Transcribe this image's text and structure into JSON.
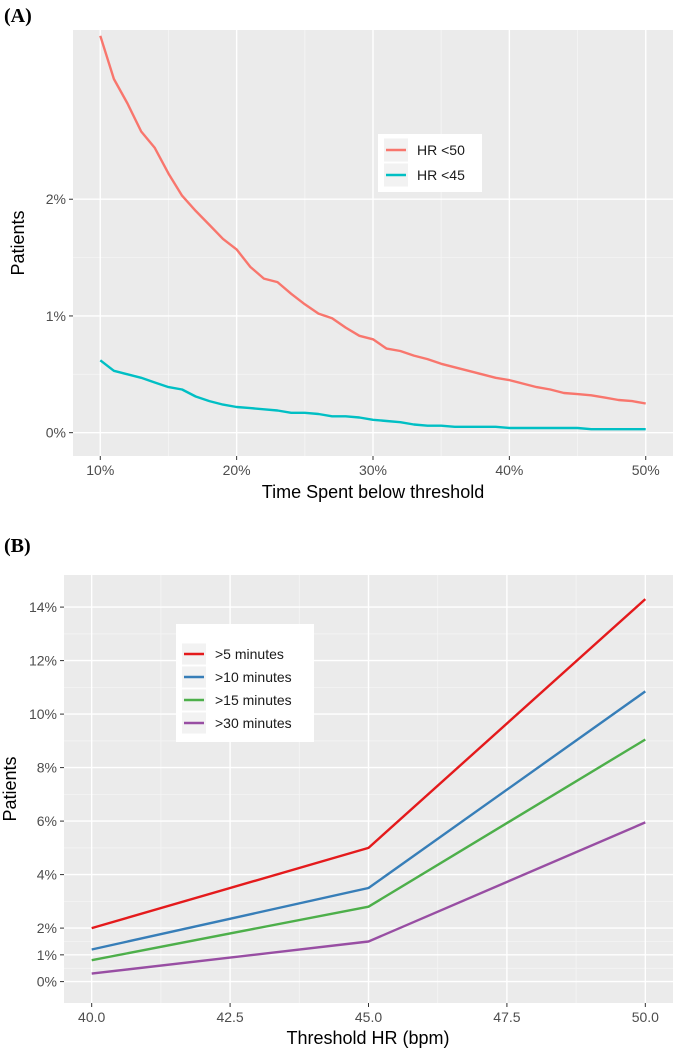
{
  "chart_data": [
    {
      "panel_label": "(A)",
      "type": "line",
      "title": "",
      "xlabel": "Time Spent below threshold",
      "ylabel": "Patients",
      "xlim": [
        0.08,
        0.52
      ],
      "ylim": [
        -0.2,
        3.45
      ],
      "grid": true,
      "legend_position": "top-right",
      "x_ticks": [
        {
          "value": 0.1,
          "label": "10%"
        },
        {
          "value": 0.2,
          "label": "20%"
        },
        {
          "value": 0.3,
          "label": "30%"
        },
        {
          "value": 0.4,
          "label": "40%"
        },
        {
          "value": 0.5,
          "label": "50%"
        }
      ],
      "y_ticks": [
        {
          "value": 0,
          "label": "0%"
        },
        {
          "value": 1,
          "label": "1%"
        },
        {
          "value": 2,
          "label": "2%"
        }
      ],
      "x": [
        0.1,
        0.11,
        0.12,
        0.13,
        0.14,
        0.15,
        0.16,
        0.17,
        0.18,
        0.19,
        0.2,
        0.21,
        0.22,
        0.23,
        0.24,
        0.25,
        0.26,
        0.27,
        0.28,
        0.29,
        0.3,
        0.31,
        0.32,
        0.33,
        0.34,
        0.35,
        0.36,
        0.37,
        0.38,
        0.39,
        0.4,
        0.41,
        0.42,
        0.43,
        0.44,
        0.45,
        0.46,
        0.47,
        0.48,
        0.49,
        0.5
      ],
      "series": [
        {
          "name": "HR <50",
          "color": "#F8766D",
          "values": [
            3.4,
            3.03,
            2.82,
            2.58,
            2.44,
            2.22,
            2.03,
            1.9,
            1.78,
            1.66,
            1.57,
            1.42,
            1.32,
            1.29,
            1.19,
            1.1,
            1.02,
            0.98,
            0.9,
            0.83,
            0.8,
            0.72,
            0.7,
            0.66,
            0.63,
            0.59,
            0.56,
            0.53,
            0.5,
            0.47,
            0.45,
            0.42,
            0.39,
            0.37,
            0.34,
            0.33,
            0.32,
            0.3,
            0.28,
            0.27,
            0.25
          ]
        },
        {
          "name": "HR <45",
          "color": "#00BFC4",
          "values": [
            0.62,
            0.53,
            0.5,
            0.47,
            0.43,
            0.39,
            0.37,
            0.31,
            0.27,
            0.24,
            0.22,
            0.21,
            0.2,
            0.19,
            0.17,
            0.17,
            0.16,
            0.14,
            0.14,
            0.13,
            0.11,
            0.1,
            0.09,
            0.07,
            0.06,
            0.06,
            0.05,
            0.05,
            0.05,
            0.05,
            0.04,
            0.04,
            0.04,
            0.04,
            0.04,
            0.04,
            0.03,
            0.03,
            0.03,
            0.03,
            0.03
          ]
        }
      ]
    },
    {
      "panel_label": "(B)",
      "type": "line",
      "title": "",
      "xlabel": "Threshold HR (bpm)",
      "ylabel": "Patients",
      "xlim": [
        39.5,
        50.5
      ],
      "ylim": [
        -0.8,
        15.2
      ],
      "grid": true,
      "legend_position": "top-left",
      "x_ticks": [
        {
          "value": 40,
          "label": "40.0"
        },
        {
          "value": 42.5,
          "label": "42.5"
        },
        {
          "value": 45,
          "label": "45.0"
        },
        {
          "value": 47.5,
          "label": "47.5"
        },
        {
          "value": 50,
          "label": "50.0"
        }
      ],
      "y_ticks": [
        {
          "value": 0,
          "label": "0%"
        },
        {
          "value": 1,
          "label": "1%"
        },
        {
          "value": 2,
          "label": "2%"
        },
        {
          "value": 4,
          "label": "4%"
        },
        {
          "value": 6,
          "label": "6%"
        },
        {
          "value": 8,
          "label": "8%"
        },
        {
          "value": 10,
          "label": "10%"
        },
        {
          "value": 12,
          "label": "12%"
        },
        {
          "value": 14,
          "label": "14%"
        }
      ],
      "x": [
        40,
        45,
        50
      ],
      "series": [
        {
          "name": ">5 minutes",
          "color": "#E41A1C",
          "values": [
            2.0,
            5.0,
            14.3
          ]
        },
        {
          "name": ">10 minutes",
          "color": "#377EB8",
          "values": [
            1.2,
            3.5,
            10.85
          ]
        },
        {
          "name": ">15 minutes",
          "color": "#4DAF4A",
          "values": [
            0.8,
            2.8,
            9.05
          ]
        },
        {
          "name": ">30 minutes",
          "color": "#984EA3",
          "values": [
            0.3,
            1.5,
            5.95
          ]
        }
      ]
    }
  ]
}
